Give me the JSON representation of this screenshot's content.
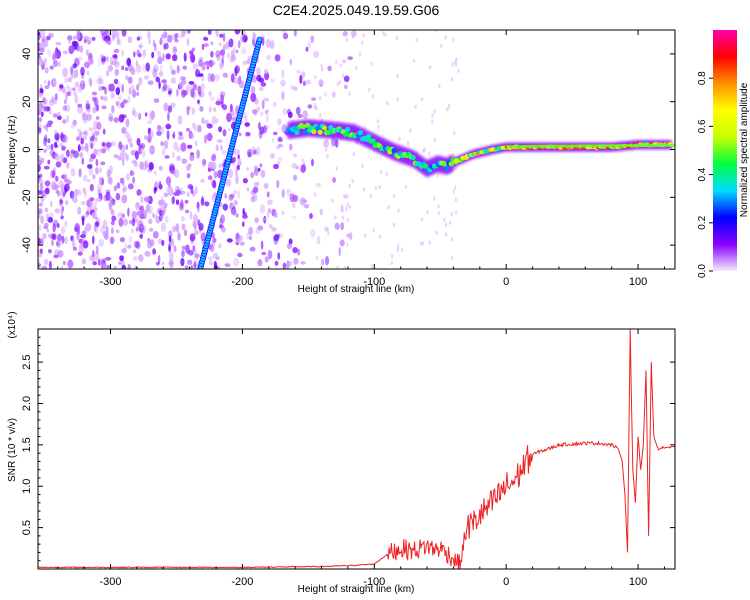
{
  "figure": {
    "title": "C2E4.2025.049.19.59.G06"
  },
  "chart_data": [
    {
      "type": "heatmap",
      "title": "C2E4.2025.049.19.59.G06",
      "xlabel": "Height of straight line (km)",
      "ylabel": "Frequency (Hz)",
      "xlim": [
        -355,
        128
      ],
      "ylim": [
        -50,
        50
      ],
      "xticks": [
        -300,
        -200,
        -100,
        0,
        100
      ],
      "yticks": [
        -40,
        -20,
        0,
        20,
        40
      ],
      "colorbar": {
        "label": "Normalized spectral amplitude",
        "range": [
          0,
          1
        ],
        "ticks": [
          0.0,
          0.2,
          0.4,
          0.6,
          0.8
        ],
        "tick_labels": [
          "0.0",
          "0.2",
          "0.4",
          "0.6",
          "0.8"
        ],
        "colors": [
          "#f4eafc",
          "#8800ff",
          "#0000ff",
          "#00dcff",
          "#00ff40",
          "#c8ff00",
          "#ffff00",
          "#ff9000",
          "#ff0000",
          "#ff00aa"
        ]
      },
      "features": {
        "noise_region_x": [
          -355,
          -140
        ],
        "main_track": [
          [
            -165,
            8
          ],
          [
            -150,
            9
          ],
          [
            -130,
            8
          ],
          [
            -115,
            7
          ],
          [
            -100,
            3
          ],
          [
            -85,
            -1
          ],
          [
            -70,
            -4
          ],
          [
            -60,
            -8
          ],
          [
            -52,
            -6
          ],
          [
            -45,
            -7
          ],
          [
            -38,
            -5
          ],
          [
            -25,
            -2
          ],
          [
            -10,
            0
          ],
          [
            0,
            1
          ],
          [
            20,
            1
          ],
          [
            40,
            1
          ],
          [
            60,
            1
          ],
          [
            80,
            1
          ],
          [
            100,
            2
          ],
          [
            125,
            2
          ]
        ],
        "diagonal_line": [
          [
            -232,
            -50
          ],
          [
            -187,
            46
          ]
        ]
      }
    },
    {
      "type": "line",
      "xlabel": "Height of straight line (km)",
      "ylabel": "SNR (10 * v/v)",
      "y_scale_label": "(x10⁴)",
      "xlim": [
        -355,
        128
      ],
      "ylim": [
        0,
        2.9
      ],
      "xticks": [
        -300,
        -200,
        -100,
        0,
        100
      ],
      "yticks": [
        0.5,
        1.0,
        1.5,
        2.0,
        2.5
      ],
      "ytick_labels": [
        "0.5",
        "1.0",
        "1.5",
        "2.0",
        "2.5"
      ],
      "series": [
        {
          "color": "#ee2222",
          "x": [
            -355,
            -300,
            -200,
            -140,
            -120,
            -100,
            -90,
            -80,
            -70,
            -60,
            -55,
            -50,
            -45,
            -40,
            -35,
            -30,
            -25,
            -20,
            -15,
            -10,
            -5,
            0,
            5,
            10,
            15,
            20,
            25,
            30,
            35,
            40,
            50,
            60,
            70,
            80,
            85,
            88,
            90,
            92,
            94,
            96,
            98,
            100,
            102,
            104,
            106,
            108,
            110,
            112,
            115,
            120,
            128
          ],
          "y": [
            0.02,
            0.02,
            0.02,
            0.03,
            0.04,
            0.06,
            0.18,
            0.25,
            0.22,
            0.28,
            0.24,
            0.25,
            0.2,
            0.12,
            0.05,
            0.5,
            0.55,
            0.65,
            0.72,
            0.8,
            0.9,
            1.0,
            1.05,
            1.15,
            1.3,
            1.38,
            1.42,
            1.44,
            1.47,
            1.5,
            1.51,
            1.52,
            1.52,
            1.5,
            1.45,
            1.3,
            0.9,
            0.2,
            2.9,
            1.2,
            0.8,
            1.6,
            1.2,
            1.5,
            2.4,
            0.4,
            2.5,
            1.6,
            1.45,
            1.47,
            1.47
          ]
        }
      ]
    }
  ]
}
